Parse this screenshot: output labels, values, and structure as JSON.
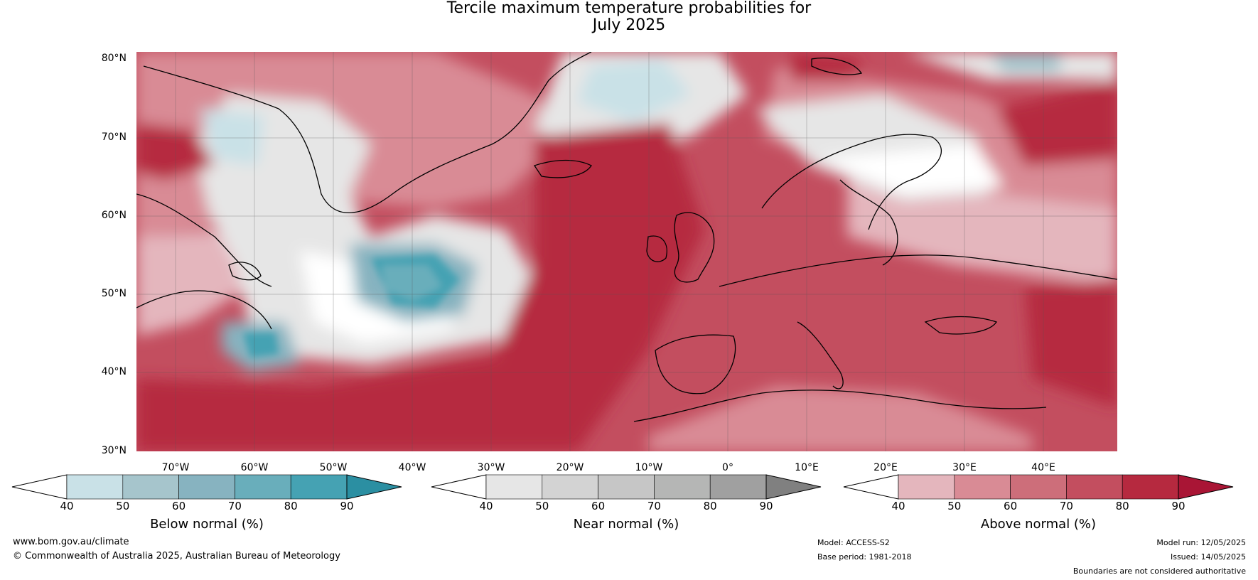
{
  "title": {
    "line1": "Tercile maximum temperature probabilities for",
    "line2": "July 2025"
  },
  "map": {
    "lat_labels": [
      "80°N",
      "70°N",
      "60°N",
      "50°N",
      "40°N",
      "30°N"
    ],
    "lon_labels": [
      "70°W",
      "60°W",
      "50°W",
      "40°W",
      "30°W",
      "20°W",
      "10°W",
      "0°",
      "10°E",
      "20°E",
      "30°E",
      "40°E"
    ]
  },
  "colorbars": [
    {
      "title": "Below normal (%)",
      "ticks": [
        "40",
        "50",
        "60",
        "70",
        "80",
        "90"
      ],
      "colors": [
        "#ffffff",
        "#c9e1e7",
        "#a6c5cc",
        "#87b3c0",
        "#69aebb",
        "#45a2b3",
        "#2b8fa2"
      ]
    },
    {
      "title": "Near normal (%)",
      "ticks": [
        "40",
        "50",
        "60",
        "70",
        "80",
        "90"
      ],
      "colors": [
        "#ffffff",
        "#e6e6e6",
        "#d3d3d3",
        "#c6c6c6",
        "#b5b6b5",
        "#a0a0a0",
        "#808080"
      ]
    },
    {
      "title": "Above normal (%)",
      "ticks": [
        "40",
        "50",
        "60",
        "70",
        "80",
        "90"
      ],
      "colors": [
        "#ffffff",
        "#e4b6bd",
        "#d98b95",
        "#cd6e7a",
        "#c34e5f",
        "#b6293f",
        "#a91535"
      ]
    }
  ],
  "footer": {
    "website": "www.bom.gov.au/climate",
    "copyright": "© Commonwealth of Australia 2025, Australian Bureau of Meteorology",
    "model": "Model: ACCESS-S2",
    "base_period": "Base period: 1981-2018",
    "model_run": "Model run: 12/05/2025",
    "issued": "Issued: 14/05/2025",
    "disclaimer": "Boundaries are not considered authoritative"
  }
}
